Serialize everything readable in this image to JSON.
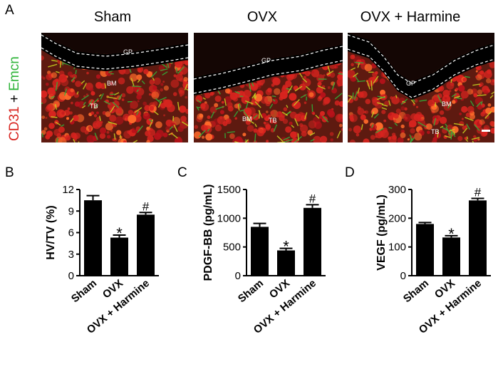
{
  "panel_a": {
    "letter": "A",
    "side_label_red": "CD31",
    "side_label_plus": " + ",
    "side_label_green": "Emcn",
    "columns": [
      {
        "title": "Sham",
        "labels": [
          "GP",
          "BM",
          "TB"
        ]
      },
      {
        "title": "OVX",
        "labels": [
          "GP",
          "BM",
          "TB"
        ]
      },
      {
        "title": "OVX + Harmine",
        "labels": [
          "GP",
          "BM",
          "TB"
        ]
      }
    ],
    "colors": {
      "red": "#d8241f",
      "green": "#2fb43a",
      "background": "#000000"
    }
  },
  "chart_data": [
    {
      "panel": "B",
      "type": "bar",
      "ylabel": "HV/TV (%)",
      "categories": [
        "Sham",
        "OVX",
        "OVX + Harmine"
      ],
      "values": [
        10.5,
        5.3,
        8.5
      ],
      "errors": [
        0.65,
        0.35,
        0.3
      ],
      "annotations": [
        "",
        "*",
        "#"
      ],
      "ylim": [
        0,
        12
      ],
      "yticks": [
        0,
        3,
        6,
        9,
        12
      ]
    },
    {
      "panel": "C",
      "type": "bar",
      "ylabel": "PDGF-BB (pg/mL)",
      "categories": [
        "Sham",
        "OVX",
        "OVX + Harmine"
      ],
      "values": [
        850,
        440,
        1180
      ],
      "errors": [
        60,
        35,
        55
      ],
      "annotations": [
        "",
        "*",
        "#"
      ],
      "ylim": [
        0,
        1500
      ],
      "yticks": [
        0,
        500,
        1000,
        1500
      ]
    },
    {
      "panel": "D",
      "type": "bar",
      "ylabel": "VEGF (pg/mL)",
      "categories": [
        "Sham",
        "OVX",
        "OVX + Harmine"
      ],
      "values": [
        180,
        133,
        262
      ],
      "errors": [
        5,
        6,
        7
      ],
      "annotations": [
        "",
        "*",
        "#"
      ],
      "ylim": [
        0,
        300
      ],
      "yticks": [
        0,
        100,
        200,
        300
      ]
    }
  ]
}
